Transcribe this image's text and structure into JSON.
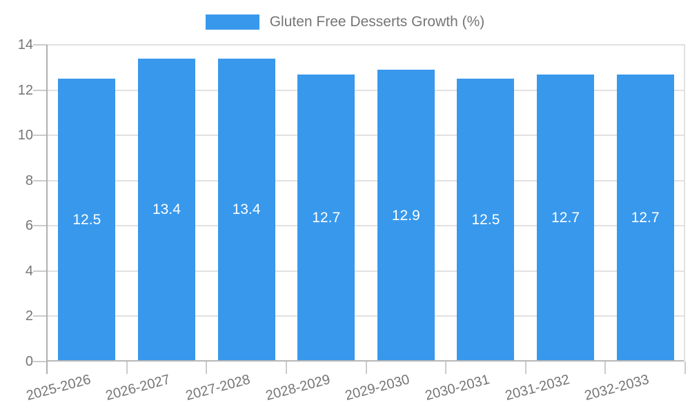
{
  "legend": {
    "label": "Gluten Free Desserts Growth (%)"
  },
  "chart_data": {
    "type": "bar",
    "title": "Gluten Free Desserts Growth (%)",
    "series_name": "Gluten Free Desserts Growth (%)",
    "categories": [
      "2025-2026",
      "2026-2027",
      "2027-2028",
      "2028-2029",
      "2029-2030",
      "2030-2031",
      "2031-2032",
      "2032-2033"
    ],
    "values": [
      12.5,
      13.4,
      13.4,
      12.7,
      12.9,
      12.5,
      12.7,
      12.7
    ],
    "value_labels": [
      "12.5",
      "13.4",
      "13.4",
      "12.7",
      "12.9",
      "12.5",
      "12.7",
      "12.7"
    ],
    "xlabel": "",
    "ylabel": "",
    "ylim": [
      0,
      14
    ],
    "yticks": [
      0,
      2,
      4,
      6,
      8,
      10,
      12,
      14
    ],
    "ytick_labels": [
      "0",
      "2",
      "4",
      "6",
      "8",
      "10",
      "12",
      "14"
    ],
    "grid": true,
    "legend_position": "top",
    "colors": {
      "bar": "#3898ec",
      "bar_label": "#ffffff",
      "axis_text": "#757575",
      "legend_text": "#757575",
      "gridline": "#e1e1e1",
      "tick": "#cbcbcb",
      "axis_line": "#b0b0b0",
      "baseline": "#b7b7b7",
      "background": "#ffffff"
    }
  }
}
